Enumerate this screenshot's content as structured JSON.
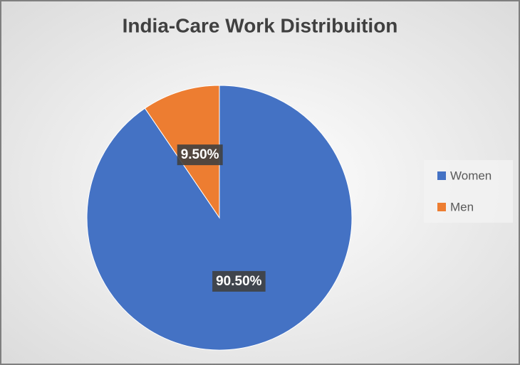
{
  "chart_data": {
    "type": "pie",
    "title": "India-Care Work Distribuition",
    "categories": [
      "Women",
      "Men"
    ],
    "values": [
      90.5,
      9.5
    ],
    "value_labels": [
      "90.50%",
      "9.50%"
    ],
    "colors": [
      "#4472c4",
      "#ed7d31"
    ],
    "legend": "right"
  }
}
